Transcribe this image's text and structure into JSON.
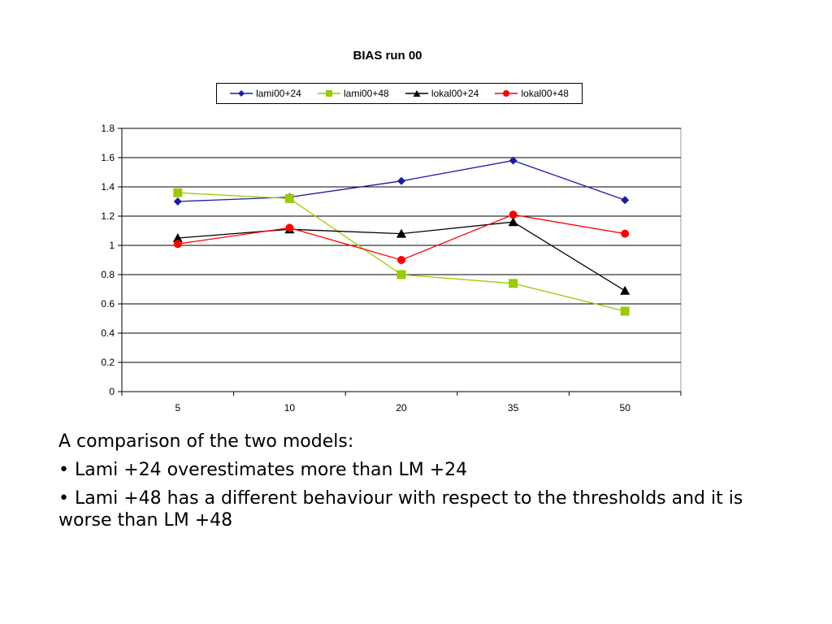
{
  "chart_data": {
    "type": "line",
    "title": "BIAS run 00",
    "categories": [
      "5",
      "10",
      "20",
      "35",
      "50"
    ],
    "ylim": [
      0,
      1.8
    ],
    "yticks": [
      "0",
      "0.2",
      "0.4",
      "0.6",
      "0.8",
      "1",
      "1.2",
      "1.4",
      "1.6",
      "1.8"
    ],
    "grid": true,
    "legend_position": "top",
    "series": [
      {
        "name": "lami00+24",
        "color": "#1a1aa6",
        "marker": "diamond",
        "values": [
          1.3,
          1.33,
          1.44,
          1.58,
          1.31
        ]
      },
      {
        "name": "lami00+48",
        "color": "#99cc00",
        "marker": "square",
        "values": [
          1.36,
          1.32,
          0.8,
          0.74,
          0.55
        ]
      },
      {
        "name": "lokal00+24",
        "color": "#000000",
        "marker": "triangle",
        "values": [
          1.05,
          1.11,
          1.08,
          1.16,
          0.69
        ]
      },
      {
        "name": "lokal00+48",
        "color": "#ff0000",
        "marker": "circle",
        "values": [
          1.01,
          1.12,
          0.9,
          1.21,
          1.08
        ]
      }
    ]
  },
  "caption": {
    "heading": "A comparison of the two models:",
    "bullets": [
      "• Lami +24 overestimates more than LM +24",
      "• Lami +48 has a different behaviour with respect to the thresholds and it is worse than LM +48"
    ]
  }
}
